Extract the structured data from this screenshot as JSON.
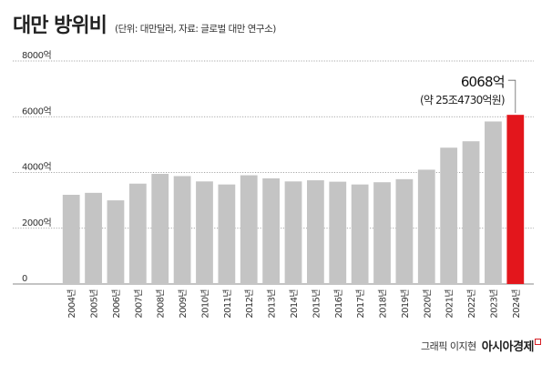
{
  "header": {
    "title": "대만 방위비",
    "subtitle": "(단위: 대만달러, 자료: 글로벌 대만 연구소)"
  },
  "footer": {
    "credit": "그래픽 이지현",
    "logo": "아시아경제"
  },
  "colors": {
    "bar": "#c4c4c4",
    "highlight": "#e3161c",
    "grid": "#8a8a8a",
    "text": "#222222"
  },
  "chart_data": {
    "type": "bar",
    "title": "대만 방위비",
    "xlabel": "",
    "ylabel": "",
    "ylim": [
      0,
      8000
    ],
    "yticks": [
      0,
      2000,
      4000,
      6000,
      8000
    ],
    "ytick_labels": [
      "0",
      "2000억",
      "4000억",
      "6000억",
      "8000억"
    ],
    "grid": true,
    "categories": [
      "2004년",
      "2005년",
      "2006년",
      "2007년",
      "2008년",
      "2009년",
      "2010년",
      "2011년",
      "2012년",
      "2013년",
      "2014년",
      "2015년",
      "2016년",
      "2017년",
      "2018년",
      "2019년",
      "2020년",
      "2021년",
      "2022년",
      "2023년",
      "2024년"
    ],
    "values": [
      3200,
      3270,
      3000,
      3600,
      3950,
      3870,
      3680,
      3570,
      3900,
      3790,
      3680,
      3720,
      3670,
      3570,
      3650,
      3760,
      4100,
      4890,
      5120,
      5830,
      6068
    ],
    "highlight_index": 20,
    "annotation": {
      "value_label": "6068억",
      "sub_label": "(약 25조4730억원)"
    }
  }
}
